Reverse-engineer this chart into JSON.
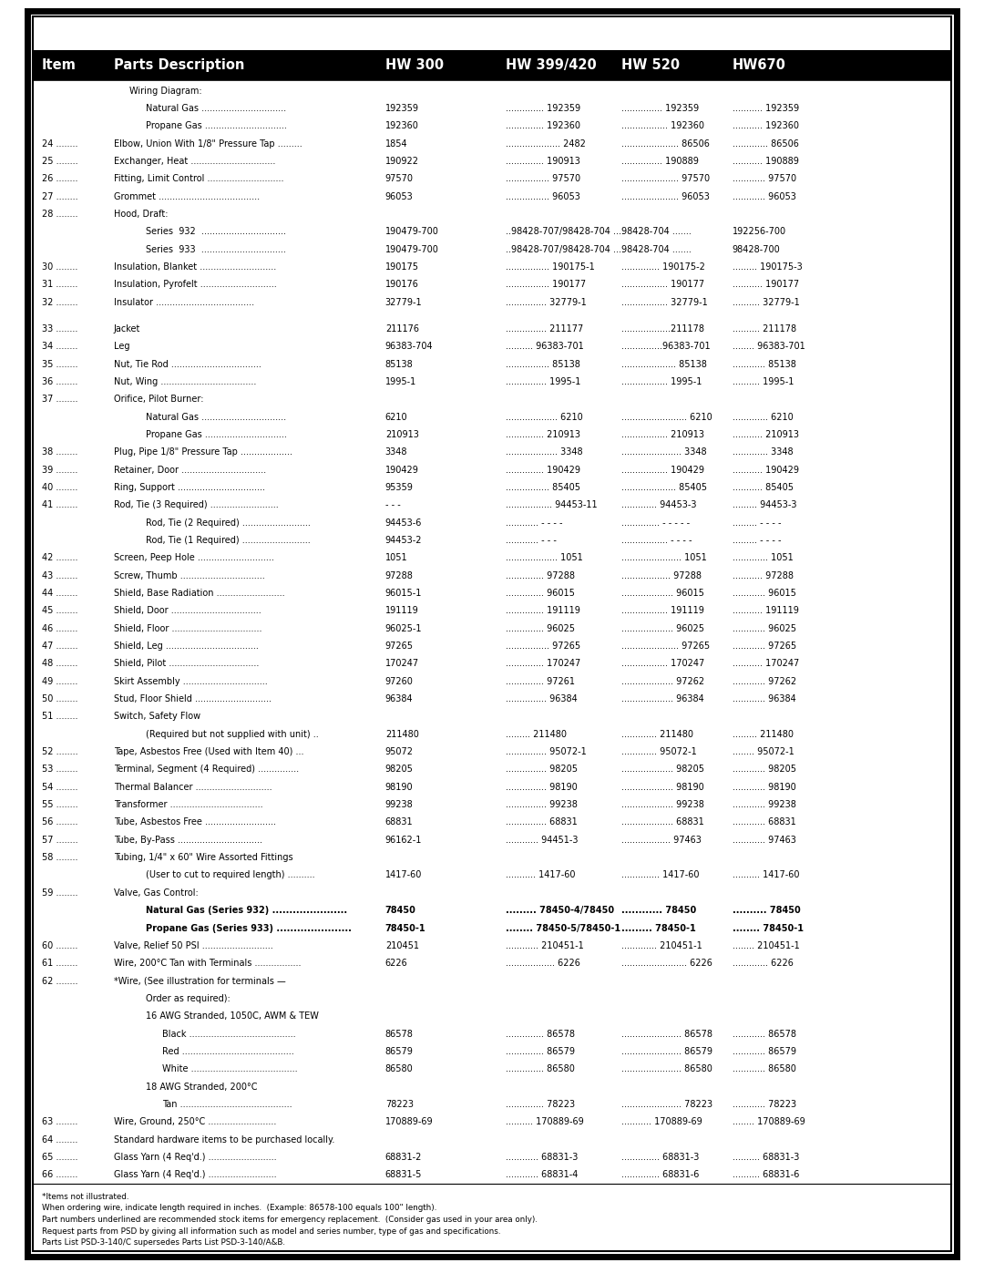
{
  "outer_border_color": "#000000",
  "header_bg": "#000000",
  "header_text_color": "#ffffff",
  "body_bg": "#ffffff",
  "body_text_color": "#000000",
  "watermark_text": "HW",
  "header_row": [
    "Item",
    "Parts Description",
    "HW 300",
    "HW 399/420",
    "HW 520",
    "HW670"
  ],
  "rows": [
    {
      "indent": 1,
      "item": "",
      "desc": "Wiring Diagram:",
      "hw300": "",
      "hw399": "",
      "hw520": "",
      "hw670": "",
      "bold": false,
      "spacer": false
    },
    {
      "indent": 2,
      "item": "",
      "desc": "Natural Gas ...............................",
      "hw300": "192359",
      "hw399": ".............. 192359",
      "hw520": "............... 192359",
      "hw670": "........... 192359",
      "bold": false,
      "spacer": false
    },
    {
      "indent": 2,
      "item": "",
      "desc": "Propane Gas ..............................",
      "hw300": "192360",
      "hw399": ".............. 192360",
      "hw520": "................. 192360",
      "hw670": "........... 192360",
      "bold": false,
      "spacer": false
    },
    {
      "indent": 0,
      "item": "24 ........",
      "desc": "Elbow, Union With 1/8\" Pressure Tap .........",
      "hw300": "1854",
      "hw399": ".................... 2482",
      "hw520": "..................... 86506",
      "hw670": "............. 86506",
      "bold": false,
      "spacer": false
    },
    {
      "indent": 0,
      "item": "25 ........",
      "desc": "Exchanger, Heat ...............................",
      "hw300": "190922",
      "hw399": ".............. 190913",
      "hw520": "............... 190889",
      "hw670": "........... 190889",
      "bold": false,
      "spacer": false
    },
    {
      "indent": 0,
      "item": "26 ........",
      "desc": "Fitting, Limit Control ............................",
      "hw300": "97570",
      "hw399": "................ 97570",
      "hw520": "..................... 97570",
      "hw670": "............ 97570",
      "bold": false,
      "spacer": false
    },
    {
      "indent": 0,
      "item": "27 ........",
      "desc": "Grommet .....................................",
      "hw300": "96053",
      "hw399": "................ 96053",
      "hw520": "..................... 96053",
      "hw670": "............ 96053",
      "bold": false,
      "spacer": false
    },
    {
      "indent": 0,
      "item": "28 ........",
      "desc": "Hood, Draft:",
      "hw300": "",
      "hw399": "",
      "hw520": "",
      "hw670": "",
      "bold": false,
      "spacer": false
    },
    {
      "indent": 2,
      "item": "",
      "desc": "Series  932  ...............................",
      "hw300": "190479-700",
      "hw399": "..98428-707/98428-704 ....",
      "hw520": "98428-704 .......",
      "hw670": "192256-700",
      "bold": false,
      "spacer": false
    },
    {
      "indent": 2,
      "item": "",
      "desc": "Series  933  ...............................",
      "hw300": "190479-700",
      "hw399": "..98428-707/98428-704 ....",
      "hw520": "98428-704 .......",
      "hw670": "98428-700",
      "bold": false,
      "spacer": false
    },
    {
      "indent": 0,
      "item": "30 ........",
      "desc": "Insulation, Blanket ............................",
      "hw300": "190175",
      "hw399": "................ 190175-1",
      "hw520": ".............. 190175-2",
      "hw670": "......... 190175-3",
      "bold": false,
      "spacer": false
    },
    {
      "indent": 0,
      "item": "31 ........",
      "desc": "Insulation, Pyrofelt ............................",
      "hw300": "190176",
      "hw399": "................ 190177",
      "hw520": "................. 190177",
      "hw670": "........... 190177",
      "bold": false,
      "spacer": false
    },
    {
      "indent": 0,
      "item": "32 ........",
      "desc": "Insulator ....................................",
      "hw300": "32779-1",
      "hw399": "............... 32779-1",
      "hw520": "................. 32779-1",
      "hw670": ".......... 32779-1",
      "bold": false,
      "spacer": false
    },
    {
      "indent": 0,
      "item": "",
      "desc": "",
      "hw300": "",
      "hw399": "",
      "hw520": "",
      "hw670": "",
      "bold": false,
      "spacer": true
    },
    {
      "indent": 0,
      "item": "33 ........",
      "desc": "Jacket",
      "hw300": "211176",
      "hw399": "............... 211177",
      "hw520": "..................211178",
      "hw670": ".......... 211178",
      "bold": false,
      "spacer": false
    },
    {
      "indent": 0,
      "item": "34 ........",
      "desc": "Leg",
      "hw300": "96383-704",
      "hw399": ".......... 96383-701",
      "hw520": "...............96383-701",
      "hw670": "........ 96383-701",
      "bold": false,
      "spacer": false
    },
    {
      "indent": 0,
      "item": "35 ........",
      "desc": "Nut, Tie Rod .................................",
      "hw300": "85138",
      "hw399": "................ 85138",
      "hw520": ".................... 85138",
      "hw670": "............ 85138",
      "bold": false,
      "spacer": false
    },
    {
      "indent": 0,
      "item": "36 ........",
      "desc": "Nut, Wing ...................................",
      "hw300": "1995-1",
      "hw399": "............... 1995-1",
      "hw520": "................. 1995-1",
      "hw670": ".......... 1995-1",
      "bold": false,
      "spacer": false
    },
    {
      "indent": 0,
      "item": "37 ........",
      "desc": "Orifice, Pilot Burner:",
      "hw300": "",
      "hw399": "",
      "hw520": "",
      "hw670": "",
      "bold": false,
      "spacer": false
    },
    {
      "indent": 2,
      "item": "",
      "desc": "Natural Gas ...............................",
      "hw300": "6210",
      "hw399": "................... 6210",
      "hw520": "........................ 6210",
      "hw670": "............. 6210",
      "bold": false,
      "spacer": false
    },
    {
      "indent": 2,
      "item": "",
      "desc": "Propane Gas ..............................",
      "hw300": "210913",
      "hw399": ".............. 210913",
      "hw520": "................. 210913",
      "hw670": "........... 210913",
      "bold": false,
      "spacer": false
    },
    {
      "indent": 0,
      "item": "38 ........",
      "desc": "Plug, Pipe 1/8\" Pressure Tap ...................",
      "hw300": "3348",
      "hw399": "................... 3348",
      "hw520": "...................... 3348",
      "hw670": "............. 3348",
      "bold": false,
      "spacer": false
    },
    {
      "indent": 0,
      "item": "39 ........",
      "desc": "Retainer, Door ...............................",
      "hw300": "190429",
      "hw399": ".............. 190429",
      "hw520": "................. 190429",
      "hw670": "........... 190429",
      "bold": false,
      "spacer": false
    },
    {
      "indent": 0,
      "item": "40 ........",
      "desc": "Ring, Support ................................",
      "hw300": "95359",
      "hw399": "................ 85405",
      "hw520": ".................... 85405",
      "hw670": "........... 85405",
      "bold": false,
      "spacer": false
    },
    {
      "indent": 0,
      "item": "41 ........",
      "desc": "Rod, Tie (3 Required) .........................",
      "hw300": "- - -",
      "hw399": "................. 94453-11",
      "hw520": "............. 94453-3",
      "hw670": "......... 94453-3",
      "bold": false,
      "spacer": false
    },
    {
      "indent": 2,
      "item": "",
      "desc": "Rod, Tie (2 Required) .........................",
      "hw300": "94453-6",
      "hw399": "............ - - - -",
      "hw520": ".............. - - - - -",
      "hw670": "......... - - - -",
      "bold": false,
      "spacer": false
    },
    {
      "indent": 2,
      "item": "",
      "desc": "Rod, Tie (1 Required) .........................",
      "hw300": "94453-2",
      "hw399": "............ - - -",
      "hw520": "................. - - - -",
      "hw670": "......... - - - -",
      "bold": false,
      "spacer": false
    },
    {
      "indent": 0,
      "item": "42 ........",
      "desc": "Screen, Peep Hole ............................",
      "hw300": "1051",
      "hw399": "................... 1051",
      "hw520": "...................... 1051",
      "hw670": "............. 1051",
      "bold": false,
      "spacer": false
    },
    {
      "indent": 0,
      "item": "43 ........",
      "desc": "Screw, Thumb ...............................",
      "hw300": "97288",
      "hw399": ".............. 97288",
      "hw520": ".................. 97288",
      "hw670": "........... 97288",
      "bold": false,
      "spacer": false
    },
    {
      "indent": 0,
      "item": "44 ........",
      "desc": "Shield, Base Radiation .........................",
      "hw300": "96015-1",
      "hw399": ".............. 96015",
      "hw520": "................... 96015",
      "hw670": "............ 96015",
      "bold": false,
      "spacer": false
    },
    {
      "indent": 0,
      "item": "45 ........",
      "desc": "Shield, Door .................................",
      "hw300": "191119",
      "hw399": ".............. 191119",
      "hw520": "................. 191119",
      "hw670": "........... 191119",
      "bold": false,
      "spacer": false
    },
    {
      "indent": 0,
      "item": "46 ........",
      "desc": "Shield, Floor .................................",
      "hw300": "96025-1",
      "hw399": ".............. 96025",
      "hw520": "................... 96025",
      "hw670": "............ 96025",
      "bold": false,
      "spacer": false
    },
    {
      "indent": 0,
      "item": "47 ........",
      "desc": "Shield, Leg ..................................",
      "hw300": "97265",
      "hw399": "................ 97265",
      "hw520": "..................... 97265",
      "hw670": "............ 97265",
      "bold": false,
      "spacer": false
    },
    {
      "indent": 0,
      "item": "48 ........",
      "desc": "Shield, Pilot .................................",
      "hw300": "170247",
      "hw399": ".............. 170247",
      "hw520": "................. 170247",
      "hw670": "........... 170247",
      "bold": false,
      "spacer": false
    },
    {
      "indent": 0,
      "item": "49 ........",
      "desc": "Skirt Assembly ...............................",
      "hw300": "97260",
      "hw399": ".............. 97261",
      "hw520": "................... 97262",
      "hw670": "............ 97262",
      "bold": false,
      "spacer": false
    },
    {
      "indent": 0,
      "item": "50 ........",
      "desc": "Stud, Floor Shield ............................",
      "hw300": "96384",
      "hw399": "............... 96384",
      "hw520": "................... 96384",
      "hw670": "............ 96384",
      "bold": false,
      "spacer": false
    },
    {
      "indent": 0,
      "item": "51 ........",
      "desc": "Switch, Safety Flow",
      "hw300": "",
      "hw399": "",
      "hw520": "",
      "hw670": "",
      "bold": false,
      "spacer": false
    },
    {
      "indent": 2,
      "item": "",
      "desc": "(Required but not supplied with unit) ..",
      "hw300": "211480",
      "hw399": "......... 211480",
      "hw520": "............. 211480",
      "hw670": "......... 211480",
      "bold": false,
      "spacer": false
    },
    {
      "indent": 0,
      "item": "52 ........",
      "desc": "Tape, Asbestos Free (Used with Item 40) ...",
      "hw300": "95072",
      "hw399": "............... 95072-1",
      "hw520": "............. 95072-1",
      "hw670": "........ 95072-1",
      "bold": false,
      "spacer": false
    },
    {
      "indent": 0,
      "item": "53 ........",
      "desc": "Terminal, Segment (4 Required) ...............",
      "hw300": "98205",
      "hw399": "............... 98205",
      "hw520": "................... 98205",
      "hw670": "............ 98205",
      "bold": false,
      "spacer": false
    },
    {
      "indent": 0,
      "item": "54 ........",
      "desc": "Thermal Balancer ............................",
      "hw300": "98190",
      "hw399": "............... 98190",
      "hw520": "................... 98190",
      "hw670": "............ 98190",
      "bold": false,
      "spacer": false
    },
    {
      "indent": 0,
      "item": "55 ........",
      "desc": "Transformer ..................................",
      "hw300": "99238",
      "hw399": "............... 99238",
      "hw520": "................... 99238",
      "hw670": "............ 99238",
      "bold": false,
      "spacer": false
    },
    {
      "indent": 0,
      "item": "56 ........",
      "desc": "Tube, Asbestos Free ..........................",
      "hw300": "68831",
      "hw399": "............... 68831",
      "hw520": "................... 68831",
      "hw670": "............ 68831",
      "bold": false,
      "spacer": false
    },
    {
      "indent": 0,
      "item": "57 ........",
      "desc": "Tube, By-Pass ...............................",
      "hw300": "96162-1",
      "hw399": "............ 94451-3",
      "hw520": ".................. 97463",
      "hw670": "............ 97463",
      "bold": false,
      "spacer": false
    },
    {
      "indent": 0,
      "item": "58 ........",
      "desc": "Tubing, 1/4\" x 60\" Wire Assorted Fittings",
      "hw300": "",
      "hw399": "",
      "hw520": "",
      "hw670": "",
      "bold": false,
      "spacer": false
    },
    {
      "indent": 2,
      "item": "",
      "desc": "(User to cut to required length) ..........",
      "hw300": "1417-60",
      "hw399": "........... 1417-60",
      "hw520": ".............. 1417-60",
      "hw670": ".......... 1417-60",
      "bold": false,
      "spacer": false
    },
    {
      "indent": 0,
      "item": "59 ........",
      "desc": "Valve, Gas Control:",
      "hw300": "",
      "hw399": "",
      "hw520": "",
      "hw670": "",
      "bold": false,
      "spacer": false
    },
    {
      "indent": 2,
      "item": "",
      "desc": "Natural Gas (Series 932) ......................",
      "hw300": "78450",
      "hw399": "......... 78450-4/78450",
      "hw520": "............ 78450",
      "hw670": ".......... 78450",
      "bold": true,
      "spacer": false
    },
    {
      "indent": 2,
      "item": "",
      "desc": "Propane Gas (Series 933) ......................",
      "hw300": "78450-1",
      "hw399": "........ 78450-5/78450-1",
      "hw520": "......... 78450-1",
      "hw670": "........ 78450-1",
      "bold": true,
      "spacer": false
    },
    {
      "indent": 0,
      "item": "60 ........",
      "desc": "Valve, Relief 50 PSI ..........................",
      "hw300": "210451",
      "hw399": "............ 210451-1",
      "hw520": "............. 210451-1",
      "hw670": "........ 210451-1",
      "bold": false,
      "spacer": false
    },
    {
      "indent": 0,
      "item": "61 ........",
      "desc": "Wire, 200°C Tan with Terminals .................",
      "hw300": "6226",
      "hw399": ".................. 6226",
      "hw520": "........................ 6226",
      "hw670": "............. 6226",
      "bold": false,
      "spacer": false
    },
    {
      "indent": 0,
      "item": "62 ........",
      "desc": "*Wire, (See illustration for terminals —",
      "hw300": "",
      "hw399": "",
      "hw520": "",
      "hw670": "",
      "bold": false,
      "spacer": false
    },
    {
      "indent": 2,
      "item": "",
      "desc": "Order as required):",
      "hw300": "",
      "hw399": "",
      "hw520": "",
      "hw670": "",
      "bold": false,
      "spacer": false
    },
    {
      "indent": 2,
      "item": "",
      "desc": "16 AWG Stranded, 1050C, AWM & TEW",
      "hw300": "",
      "hw399": "",
      "hw520": "",
      "hw670": "",
      "bold": false,
      "spacer": false
    },
    {
      "indent": 3,
      "item": "",
      "desc": "Black .......................................",
      "hw300": "86578",
      "hw399": ".............. 86578",
      "hw520": "...................... 86578",
      "hw670": "............ 86578",
      "bold": false,
      "spacer": false
    },
    {
      "indent": 3,
      "item": "",
      "desc": "Red .........................................",
      "hw300": "86579",
      "hw399": ".............. 86579",
      "hw520": "...................... 86579",
      "hw670": "............ 86579",
      "bold": false,
      "spacer": false
    },
    {
      "indent": 3,
      "item": "",
      "desc": "White .......................................",
      "hw300": "86580",
      "hw399": ".............. 86580",
      "hw520": "...................... 86580",
      "hw670": "............ 86580",
      "bold": false,
      "spacer": false
    },
    {
      "indent": 2,
      "item": "",
      "desc": "18 AWG Stranded, 200°C",
      "hw300": "",
      "hw399": "",
      "hw520": "",
      "hw670": "",
      "bold": false,
      "spacer": false
    },
    {
      "indent": 3,
      "item": "",
      "desc": "Tan .........................................",
      "hw300": "78223",
      "hw399": ".............. 78223",
      "hw520": "...................... 78223",
      "hw670": "............ 78223",
      "bold": false,
      "spacer": false
    },
    {
      "indent": 0,
      "item": "63 ........",
      "desc": "Wire, Ground, 250°C .........................",
      "hw300": "170889-69",
      "hw399": ".......... 170889-69",
      "hw520": "........... 170889-69",
      "hw670": "........ 170889-69",
      "bold": false,
      "spacer": false
    },
    {
      "indent": 0,
      "item": "64 ........",
      "desc": "Standard hardware items to be purchased locally.",
      "hw300": "",
      "hw399": "",
      "hw520": "",
      "hw670": "",
      "bold": false,
      "spacer": false
    },
    {
      "indent": 0,
      "item": "65 ........",
      "desc": "Glass Yarn (4 Req'd.) .........................",
      "hw300": "68831-2",
      "hw399": "............ 68831-3",
      "hw520": ".............. 68831-3",
      "hw670": ".......... 68831-3",
      "bold": false,
      "spacer": false
    },
    {
      "indent": 0,
      "item": "66 ........",
      "desc": "Glass Yarn (4 Req'd.) .........................",
      "hw300": "68831-5",
      "hw399": "............ 68831-4",
      "hw520": ".............. 68831-6",
      "hw670": ".......... 68831-6",
      "bold": false,
      "spacer": false
    }
  ],
  "footnotes": [
    "*Items not illustrated.",
    "When ordering wire, indicate length required in inches.  (Example: 86578-100 equals 100\" length).",
    "Part numbers underlined are recommended stock items for emergency replacement.  (Consider gas used in your area only).",
    "Request parts from PSD by giving all information such as model and series number, type of gas and specifications.",
    "Parts List PSD-3-140/C supersedes Parts List PSD-3-140/A&B."
  ]
}
